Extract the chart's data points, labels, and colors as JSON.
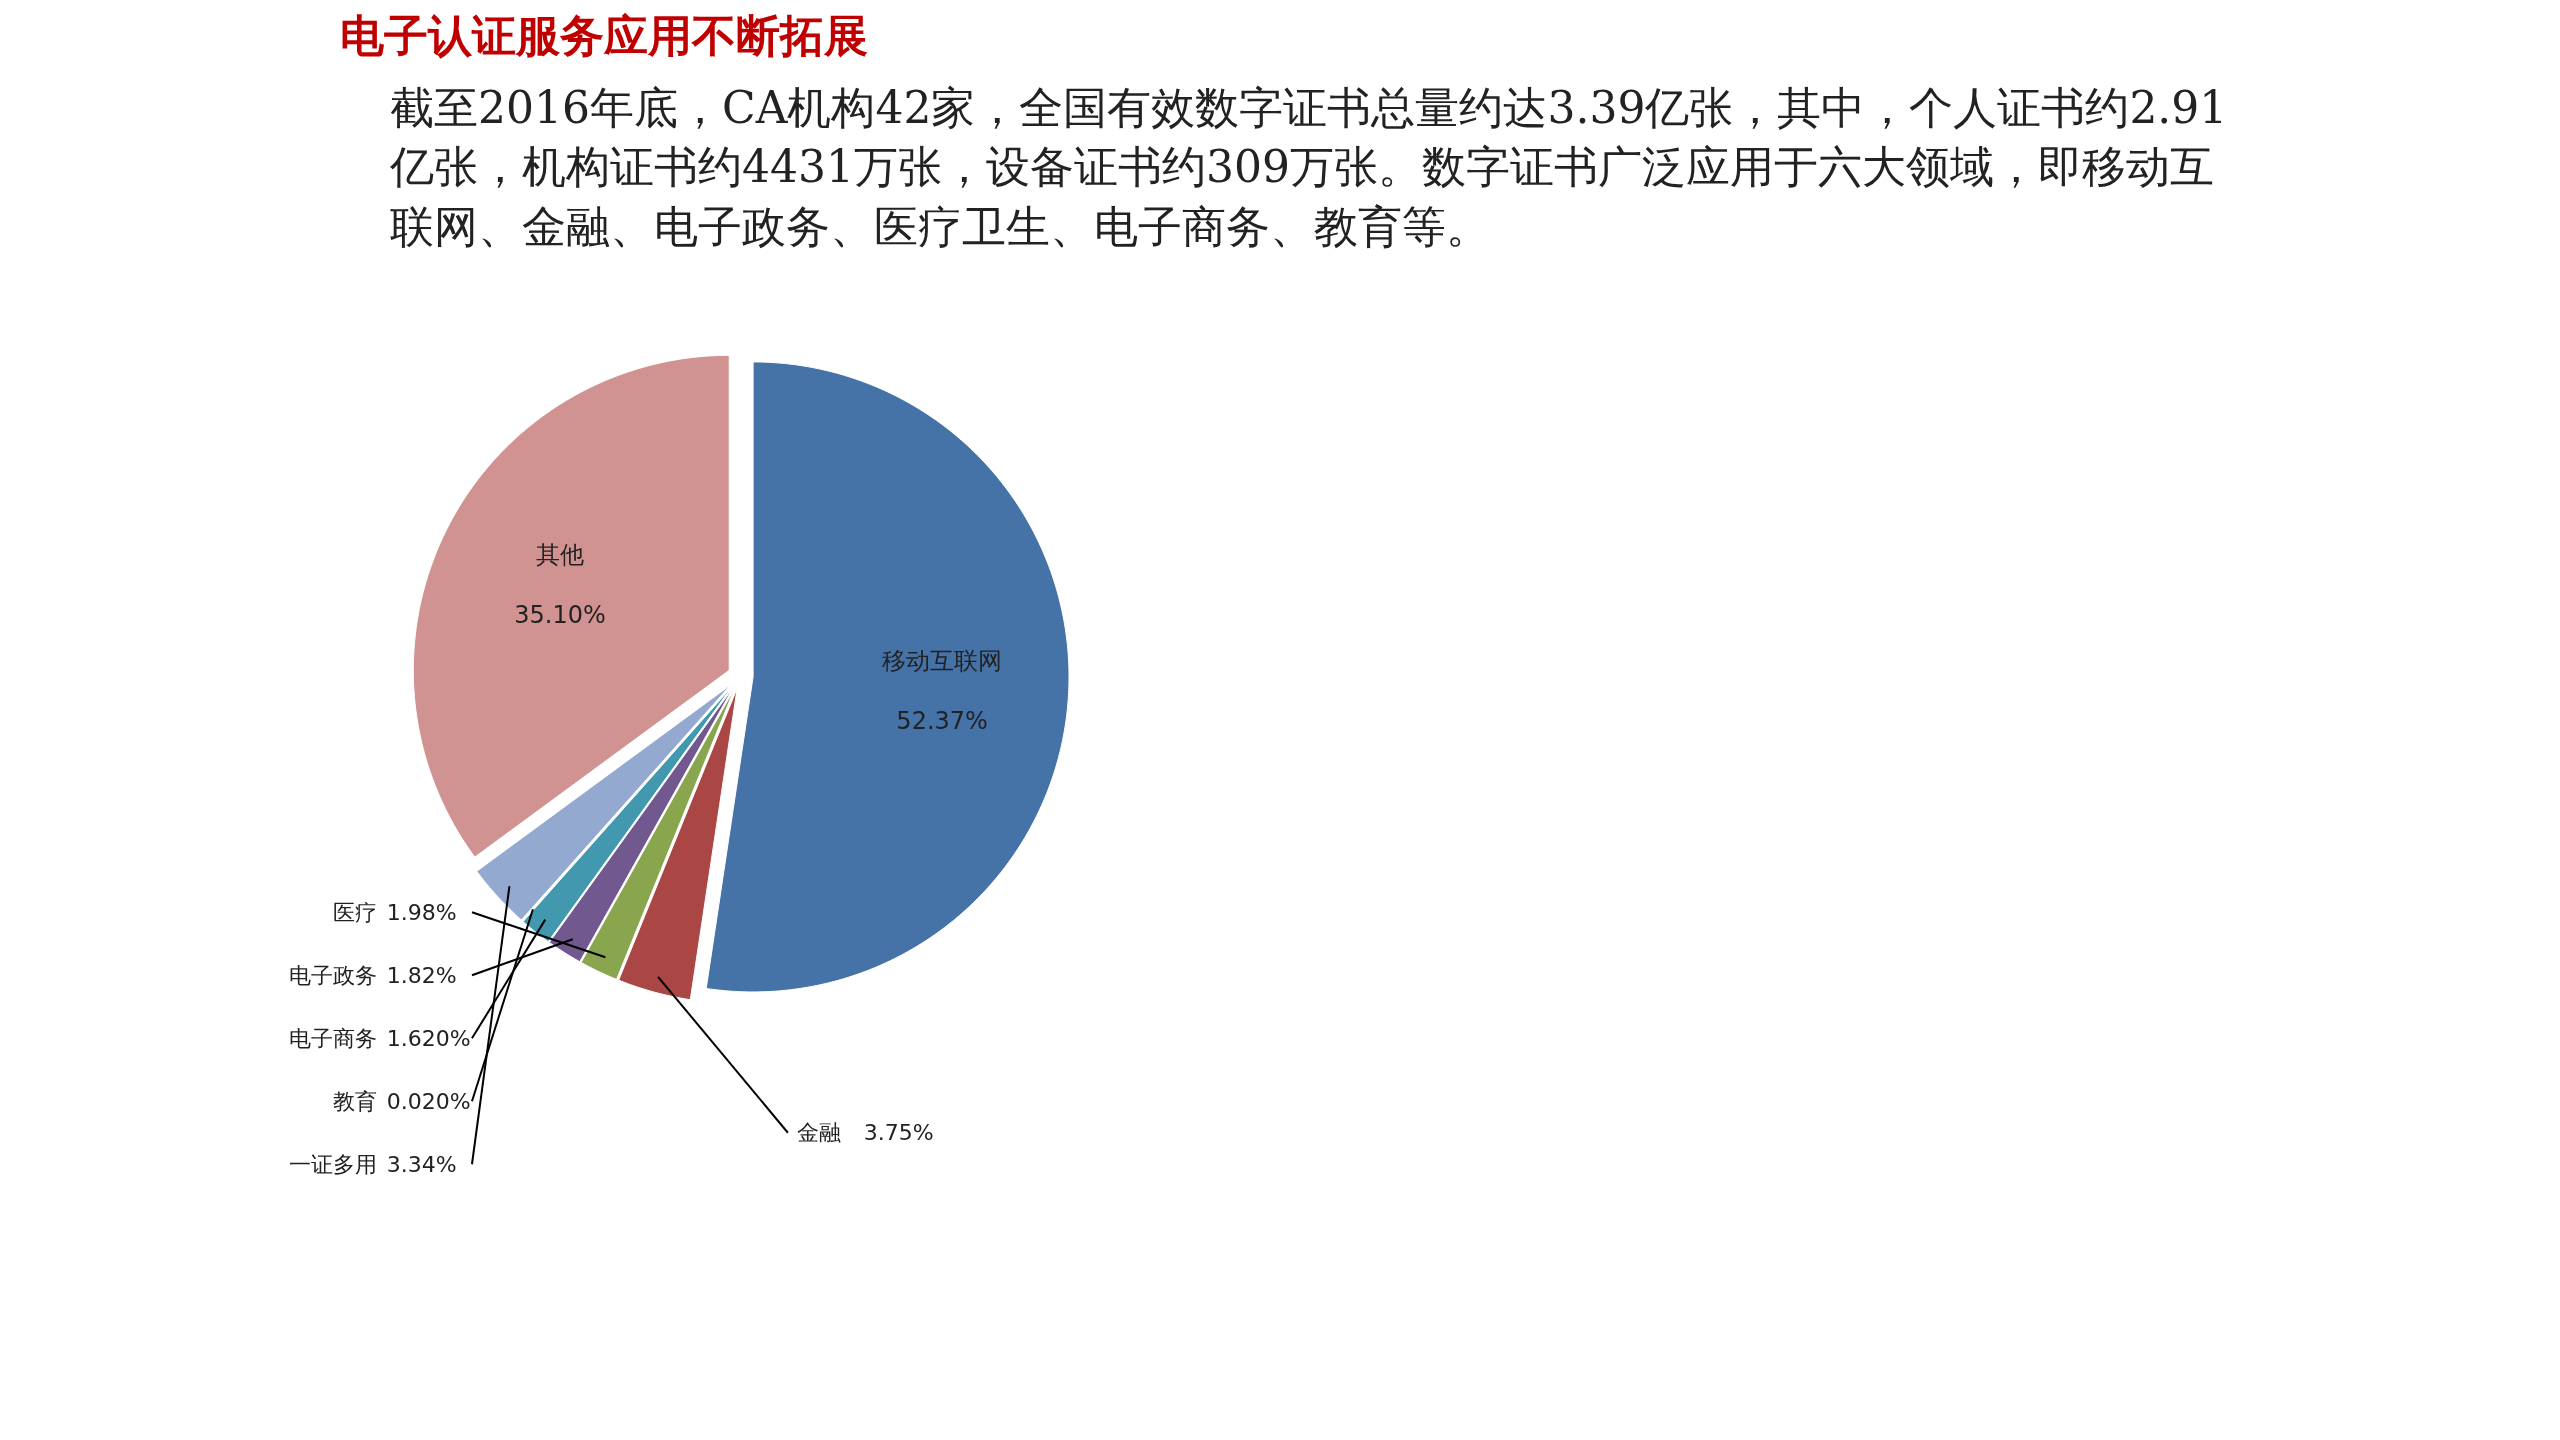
{
  "chart_data": {
    "type": "pie",
    "title": "电子认证服务应用不断拓展",
    "subtitle": "截至2016年底，CA机构42家，全国有效数字证书总量约达3.39亿张，其中，个人证书约2.91亿张，机构证书约4431万张，设备证书约309万张。数字证书广泛应用于六大领域，即移动互联网、金融、电子政务、医疗卫生、电子商务、教育等。",
    "categories": [
      "移动互联网",
      "金融",
      "医疗",
      "电子政务",
      "电子商务",
      "教育",
      "一证多用",
      "其他"
    ],
    "values": [
      52.37,
      3.75,
      1.98,
      1.82,
      1.62,
      0.02,
      3.34,
      35.1
    ],
    "value_labels": [
      "52.37%",
      "3.75%",
      "1.98%",
      "1.82%",
      "1.620%",
      "0.020%",
      "3.34%",
      "35.10%"
    ],
    "colors": [
      "#4572a7",
      "#aa4643",
      "#89a54e",
      "#71588f",
      "#4198af",
      "#db843d",
      "#93a9cf",
      "#d19392"
    ]
  }
}
